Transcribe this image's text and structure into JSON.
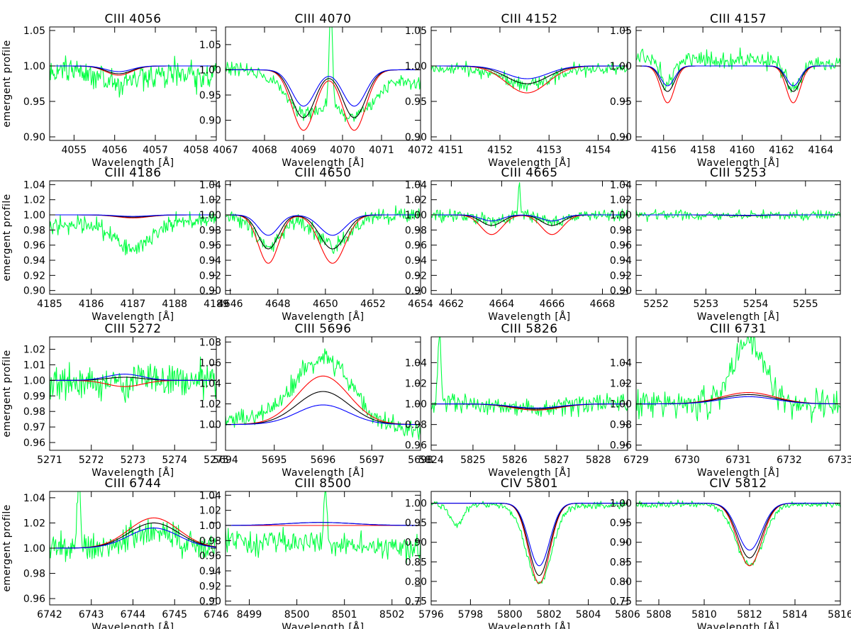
{
  "figure": {
    "series_colors": {
      "observed": "#00ff40",
      "model_red": "#ff0000",
      "model_black": "#000000",
      "model_blue": "#0000ff"
    }
  },
  "chart_data": [
    {
      "type": "line",
      "title": "CIII 4056",
      "xlabel": "Wavelength [Å]",
      "ylabel": "emergent profile",
      "xlim": [
        4054.4,
        4058.5
      ],
      "ylim": [
        0.895,
        1.055
      ],
      "xticks": [
        4055,
        4056,
        4057,
        4058
      ],
      "yticks": [
        0.9,
        0.95,
        1.0,
        1.05
      ],
      "xfmt": 0,
      "yfmt": 2,
      "lines": [
        {
          "center": 4056.1,
          "width": 0.45
        }
      ],
      "depth": {
        "red": 0.013,
        "black": 0.011,
        "blue": 0.008
      },
      "observed": {
        "level": 0.99,
        "scatter": 0.012,
        "trend": -0.008,
        "line_scale": 1.4,
        "width_scale": 1.5,
        "seed": 11
      }
    },
    {
      "type": "line",
      "title": "CIII 4070",
      "xlabel": "Wavelength [Å]",
      "ylabel": "",
      "xlim": [
        4067,
        4072
      ],
      "ylim": [
        0.86,
        1.085
      ],
      "xticks": [
        4067,
        4068,
        4069,
        4070,
        4071,
        4072
      ],
      "yticks": [
        0.9,
        0.95,
        1.0,
        1.05
      ],
      "xfmt": 0,
      "yfmt": 2,
      "lines": [
        {
          "center": 4069.0,
          "width": 0.42
        },
        {
          "center": 4070.3,
          "width": 0.42
        }
      ],
      "depth": {
        "red": 0.12,
        "black": 0.095,
        "blue": 0.072
      },
      "observed": {
        "level": 0.99,
        "scatter": 0.008,
        "trend": -0.03,
        "line_scale": 0.8,
        "width_scale": 1.6,
        "seed": 23,
        "spike": {
          "at": 4069.7,
          "height": 0.2,
          "width": 0.06
        }
      }
    },
    {
      "type": "line",
      "title": "CIII 4152",
      "xlabel": "Wavelength [Å]",
      "ylabel": "",
      "xlim": [
        4150.6,
        4154.6
      ],
      "ylim": [
        0.895,
        1.055
      ],
      "xticks": [
        4151,
        4152,
        4153,
        4154
      ],
      "yticks": [
        0.9,
        0.95,
        1.0,
        1.05
      ],
      "xfmt": 0,
      "yfmt": 2,
      "lines": [
        {
          "center": 4152.55,
          "width": 0.6
        }
      ],
      "depth": {
        "red": 0.038,
        "black": 0.025,
        "blue": 0.018
      },
      "observed": {
        "level": 0.997,
        "scatter": 0.006,
        "trend": 0.0,
        "line_scale": 0.9,
        "width_scale": 1.3,
        "seed": 37
      }
    },
    {
      "type": "line",
      "title": "CIII 4157",
      "xlabel": "Wavelength [Å]",
      "ylabel": "",
      "xlim": [
        4154.6,
        4165.0
      ],
      "ylim": [
        0.895,
        1.055
      ],
      "xticks": [
        4156,
        4158,
        4160,
        4162,
        4164
      ],
      "yticks": [
        0.9,
        0.95,
        1.0,
        1.05
      ],
      "xfmt": 0,
      "yfmt": 2,
      "lines": [
        {
          "center": 4156.2,
          "width": 0.5
        },
        {
          "center": 4162.6,
          "width": 0.5
        }
      ],
      "depth": {
        "red": 0.052,
        "black": 0.036,
        "blue": 0.028
      },
      "observed": {
        "level": 1.008,
        "scatter": 0.008,
        "trend": -0.01,
        "line_scale": 1.0,
        "width_scale": 1.1,
        "seed": 41
      }
    },
    {
      "type": "line",
      "title": "CIII 4186",
      "xlabel": "Wavelength [Å]",
      "ylabel": "emergent profile",
      "xlim": [
        4185,
        4189
      ],
      "ylim": [
        0.895,
        1.045
      ],
      "xticks": [
        4185,
        4186,
        4187,
        4188,
        4189
      ],
      "yticks": [
        0.9,
        0.92,
        0.94,
        0.96,
        0.98,
        1.0,
        1.02,
        1.04
      ],
      "xfmt": 0,
      "yfmt": 2,
      "lines": [
        {
          "center": 4187.0,
          "width": 0.55
        }
      ],
      "depth": {
        "red": 0.004,
        "black": 0.003,
        "blue": 0.002
      },
      "observed": {
        "level": 0.99,
        "scatter": 0.007,
        "trend": 0.008,
        "line_scale": 12.0,
        "width_scale": 1.1,
        "seed": 53
      }
    },
    {
      "type": "line",
      "title": "CIII 4650",
      "xlabel": "Wavelength [Å]",
      "ylabel": "",
      "xlim": [
        4645.8,
        4654
      ],
      "ylim": [
        0.895,
        1.045
      ],
      "xticks": [
        4646,
        4648,
        4650,
        4652,
        4654
      ],
      "yticks": [
        0.9,
        0.92,
        0.94,
        0.96,
        0.98,
        1.0,
        1.02,
        1.04
      ],
      "xfmt": 0,
      "yfmt": 2,
      "lines": [
        {
          "center": 4647.6,
          "width": 0.6
        },
        {
          "center": 4650.3,
          "width": 0.75
        }
      ],
      "depth": {
        "red": 0.064,
        "black": 0.045,
        "blue": 0.027
      },
      "observed": {
        "level": 0.998,
        "scatter": 0.007,
        "trend": 0.0,
        "line_scale": 0.85,
        "width_scale": 1.3,
        "seed": 67
      }
    },
    {
      "type": "line",
      "title": "CIII 4665",
      "xlabel": "Wavelength [Å]",
      "ylabel": "",
      "xlim": [
        4661.2,
        4669
      ],
      "ylim": [
        0.895,
        1.045
      ],
      "xticks": [
        4662,
        4664,
        4666,
        4668
      ],
      "yticks": [
        0.9,
        0.92,
        0.94,
        0.96,
        0.98,
        1.0,
        1.02,
        1.04
      ],
      "xfmt": 0,
      "yfmt": 2,
      "lines": [
        {
          "center": 4663.6,
          "width": 0.6
        },
        {
          "center": 4666.0,
          "width": 0.6
        }
      ],
      "depth": {
        "red": 0.026,
        "black": 0.014,
        "blue": 0.008
      },
      "observed": {
        "level": 1.0,
        "scatter": 0.005,
        "trend": 0.0,
        "line_scale": 0.6,
        "width_scale": 1.2,
        "seed": 71,
        "spike": {
          "at": 4664.7,
          "height": 0.05,
          "width": 0.05
        }
      }
    },
    {
      "type": "line",
      "title": "CIII 5253",
      "xlabel": "Wavelength [Å]",
      "ylabel": "",
      "xlim": [
        5251.6,
        5255.7
      ],
      "ylim": [
        0.895,
        1.045
      ],
      "xticks": [
        5252,
        5253,
        5254,
        5255
      ],
      "yticks": [
        0.9,
        0.92,
        0.94,
        0.96,
        0.98,
        1.0,
        1.02,
        1.04
      ],
      "xfmt": 0,
      "yfmt": 2,
      "lines": [
        {
          "center": 5253.8,
          "width": 0.5
        }
      ],
      "depth": {
        "red": 0.001,
        "black": 0.001,
        "blue": 0.0005
      },
      "observed": {
        "level": 1.0,
        "scatter": 0.004,
        "trend": 0.0,
        "line_scale": 1.0,
        "width_scale": 1.0,
        "seed": 83
      }
    },
    {
      "type": "line",
      "title": "CIII 5272",
      "xlabel": "Wavelength [Å]",
      "ylabel": "emergent profile",
      "xlim": [
        5271,
        5275
      ],
      "ylim": [
        0.955,
        1.028
      ],
      "xticks": [
        5271,
        5272,
        5273,
        5274,
        5275
      ],
      "yticks": [
        0.96,
        0.97,
        0.98,
        0.99,
        1.0,
        1.01,
        1.02
      ],
      "xfmt": 0,
      "yfmt": 2,
      "lines": [
        {
          "center": 5272.8,
          "width": 0.6
        }
      ],
      "depth": {
        "red": 0.004,
        "black": -0.002,
        "blue": -0.004
      },
      "observed": {
        "level": 1.0,
        "scatter": 0.007,
        "trend": 0.004,
        "line_scale": 0.0,
        "width_scale": 1.0,
        "seed": 97
      }
    },
    {
      "type": "line",
      "title": "CIII 5696",
      "xlabel": "Wavelength [Å]",
      "ylabel": "",
      "xlim": [
        5694,
        5698
      ],
      "ylim": [
        0.975,
        1.085
      ],
      "xticks": [
        5694,
        5695,
        5696,
        5697,
        5698
      ],
      "yticks": [
        1.0,
        1.02,
        1.04,
        1.06,
        1.08
      ],
      "xfmt": 0,
      "yfmt": 2,
      "lines": [
        {
          "center": 5696.0,
          "width": 0.75
        }
      ],
      "depth": {
        "red": -0.047,
        "black": -0.032,
        "blue": -0.019
      },
      "observed": {
        "level": 1.0,
        "scatter": 0.006,
        "trend": -0.012,
        "line_scale": 2.0,
        "width_scale": 1.1,
        "seed": 101
      }
    },
    {
      "type": "line",
      "title": "CIII 5826",
      "xlabel": "Wavelength [Å]",
      "ylabel": "",
      "xlim": [
        5824,
        5828.7
      ],
      "ylim": [
        0.955,
        1.065
      ],
      "xticks": [
        5824,
        5825,
        5826,
        5827,
        5828
      ],
      "yticks": [
        0.96,
        0.98,
        1.0,
        1.02,
        1.04
      ],
      "xfmt": 0,
      "yfmt": 2,
      "lines": [
        {
          "center": 5826.5,
          "width": 0.8
        }
      ],
      "depth": {
        "red": 0.006,
        "black": 0.005,
        "blue": 0.004
      },
      "observed": {
        "level": 1.0,
        "scatter": 0.006,
        "trend": 0.0,
        "line_scale": 1.0,
        "width_scale": 1.0,
        "seed": 113,
        "spike": {
          "at": 5824.2,
          "height": 0.07,
          "width": 0.05
        }
      }
    },
    {
      "type": "line",
      "title": "CIII 6731",
      "xlabel": "Wavelength [Å]",
      "ylabel": "",
      "xlim": [
        6729,
        6733
      ],
      "ylim": [
        0.955,
        1.065
      ],
      "xticks": [
        6729,
        6730,
        6731,
        6732,
        6733
      ],
      "yticks": [
        0.96,
        0.98,
        1.0,
        1.02,
        1.04
      ],
      "xfmt": 0,
      "yfmt": 2,
      "lines": [
        {
          "center": 6731.2,
          "width": 0.75
        }
      ],
      "depth": {
        "red": -0.011,
        "black": -0.009,
        "blue": -0.007
      },
      "observed": {
        "level": 1.0,
        "scatter": 0.009,
        "trend": 0.0,
        "line_scale": 7.0,
        "width_scale": 0.55,
        "seed": 127
      }
    },
    {
      "type": "line",
      "title": "CIII 6744",
      "xlabel": "Wavelength [Å]",
      "ylabel": "emergent profile",
      "xlim": [
        6742,
        6746
      ],
      "ylim": [
        0.955,
        1.045
      ],
      "xticks": [
        6742,
        6743,
        6744,
        6745,
        6746
      ],
      "yticks": [
        0.96,
        0.98,
        1.0,
        1.02,
        1.04
      ],
      "xfmt": 0,
      "yfmt": 2,
      "lines": [
        {
          "center": 6744.5,
          "width": 0.85
        }
      ],
      "depth": {
        "red": -0.024,
        "black": -0.02,
        "blue": -0.016
      },
      "observed": {
        "level": 1.0,
        "scatter": 0.007,
        "trend": 0.0,
        "line_scale": 0.65,
        "width_scale": 1.0,
        "seed": 131,
        "spike": {
          "at": 6742.7,
          "height": 0.06,
          "width": 0.05
        }
      }
    },
    {
      "type": "line",
      "title": "CIII 8500",
      "xlabel": "Wavelength [Å]",
      "ylabel": "",
      "xlim": [
        8498.5,
        8502.6
      ],
      "ylim": [
        0.895,
        1.045
      ],
      "xticks": [
        8499,
        8500,
        8501,
        8502
      ],
      "yticks": [
        0.9,
        0.92,
        0.94,
        0.96,
        0.98,
        1.0,
        1.02,
        1.04
      ],
      "xfmt": 0,
      "yfmt": 2,
      "lines": [
        {
          "center": 8500.5,
          "width": 1.0
        }
      ],
      "depth": {
        "red": 0.0,
        "black": -0.004,
        "blue": -0.004
      },
      "observed": {
        "level": 0.975,
        "scatter": 0.01,
        "trend": -0.01,
        "line_scale": 0.0,
        "width_scale": 1.0,
        "seed": 139,
        "spike": {
          "at": 8500.6,
          "height": 0.07,
          "width": 0.05
        }
      }
    },
    {
      "type": "line",
      "title": "CIV 5801",
      "xlabel": "Wavelength [Å]",
      "ylabel": "",
      "xlim": [
        5796,
        5806
      ],
      "ylim": [
        0.74,
        1.03
      ],
      "xticks": [
        5796,
        5798,
        5800,
        5802,
        5804,
        5806
      ],
      "yticks": [
        0.75,
        0.8,
        0.85,
        0.9,
        0.95,
        1.0
      ],
      "xfmt": 0,
      "yfmt": 2,
      "lines": [
        {
          "center": 5801.5,
          "width": 0.75
        }
      ],
      "depth": {
        "red": 0.205,
        "black": 0.185,
        "blue": 0.16
      },
      "observed": {
        "level": 0.995,
        "scatter": 0.006,
        "trend": 0.0,
        "line_scale": 1.08,
        "width_scale": 1.2,
        "seed": 149,
        "extra": {
          "at": 5797.3,
          "depth": 0.05,
          "width": 0.45
        }
      }
    },
    {
      "type": "line",
      "title": "CIV 5812",
      "xlabel": "Wavelength [Å]",
      "ylabel": "",
      "xlim": [
        5807,
        5816
      ],
      "ylim": [
        0.74,
        1.03
      ],
      "xticks": [
        5808,
        5810,
        5812,
        5814,
        5816
      ],
      "yticks": [
        0.75,
        0.8,
        0.85,
        0.9,
        0.95,
        1.0
      ],
      "xfmt": 0,
      "yfmt": 2,
      "lines": [
        {
          "center": 5812.0,
          "width": 0.75
        }
      ],
      "depth": {
        "red": 0.16,
        "black": 0.14,
        "blue": 0.12
      },
      "observed": {
        "level": 0.997,
        "scatter": 0.005,
        "trend": 0.0,
        "line_scale": 1.08,
        "width_scale": 1.15,
        "seed": 157
      }
    }
  ]
}
